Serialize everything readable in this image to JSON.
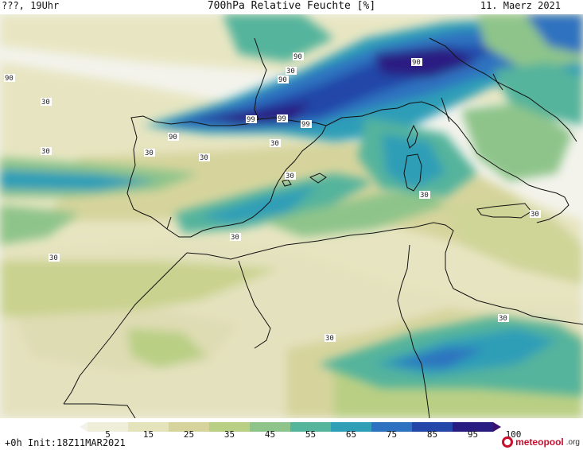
{
  "header": {
    "left": "???, 19Uhr",
    "title": "700hPa Relative Feuchte [%]",
    "date": "11. Maerz 2021"
  },
  "map": {
    "contour_labels": [
      "90",
      "90",
      "90",
      "90",
      "99",
      "99",
      "99",
      "90",
      "30",
      "30",
      "30",
      "30",
      "30",
      "30",
      "30",
      "30",
      "30",
      "30",
      "30",
      "30",
      "30"
    ]
  },
  "legend": {
    "ticks": [
      "5",
      "15",
      "25",
      "35",
      "45",
      "55",
      "65",
      "75",
      "85",
      "95",
      "100"
    ],
    "colors": [
      "#f3f3ec",
      "#efefd9",
      "#e5e3bc",
      "#d6d49c",
      "#b9cf84",
      "#8ec48a",
      "#55b49c",
      "#2f9eb7",
      "#2d72c0",
      "#2446a8",
      "#2a1d82",
      "#3a0f6e"
    ]
  },
  "footer": {
    "init": "+0h  Init:18Z11MAR2021",
    "brand": "meteopool",
    "brand_tld": ".org"
  }
}
